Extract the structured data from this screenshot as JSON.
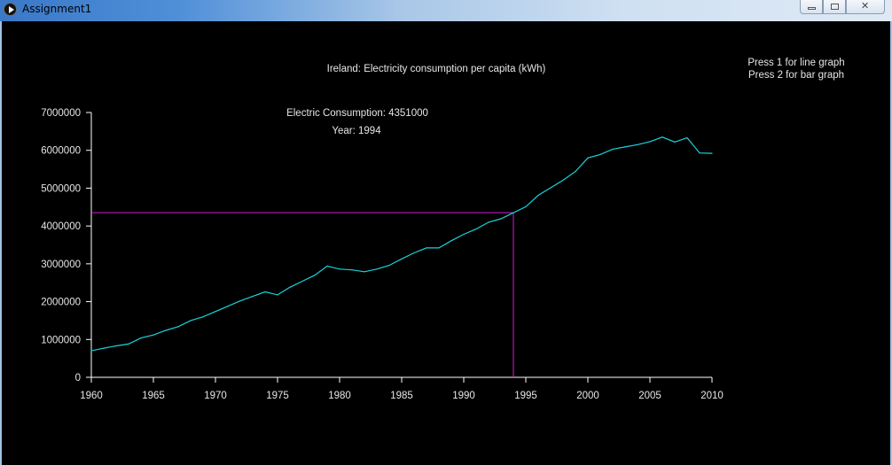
{
  "window": {
    "title": "Assignment1"
  },
  "instructions": [
    "Press 1 for line graph",
    "Press 2 for bar graph"
  ],
  "readout": {
    "consumption_label": "Electric Consumption: 4351000",
    "year_label": "Year: 1994"
  },
  "colors": {
    "line": "#19d3dd",
    "cursor": "#d21ed2",
    "axis": "#ffffff",
    "text": "#e6e6e6",
    "background": "#000000"
  },
  "chart_data": {
    "type": "line",
    "title": "Ireland: Electricity consumption per capita (kWh)",
    "xlabel": "",
    "ylabel": "",
    "xlim": [
      1960,
      2010
    ],
    "ylim": [
      0,
      7000000
    ],
    "x_ticks": [
      "1960",
      "1965",
      "1970",
      "1975",
      "1980",
      "1985",
      "1990",
      "1995",
      "2000",
      "2005",
      "2010"
    ],
    "y_ticks": [
      "0",
      "1000000",
      "2000000",
      "3000000",
      "4000000",
      "5000000",
      "6000000",
      "7000000"
    ],
    "series": [
      {
        "x": [
          1960,
          1961,
          1962,
          1963,
          1964,
          1965,
          1966,
          1967,
          1968,
          1969,
          1970,
          1971,
          1972,
          1973,
          1974,
          1975,
          1976,
          1977,
          1978,
          1979,
          1980,
          1981,
          1982,
          1983,
          1984,
          1985,
          1986,
          1987,
          1988,
          1989,
          1990,
          1991,
          1992,
          1993,
          1994,
          1995,
          1996,
          1997,
          1998,
          1999,
          2000,
          2001,
          2002,
          2003,
          2004,
          2005,
          2006,
          2007,
          2008,
          2009,
          2010
        ],
        "values": [
          700000,
          770000,
          830000,
          880000,
          1040000,
          1120000,
          1240000,
          1340000,
          1500000,
          1600000,
          1740000,
          1880000,
          2020000,
          2140000,
          2260000,
          2180000,
          2380000,
          2540000,
          2700000,
          2940000,
          2860000,
          2840000,
          2790000,
          2860000,
          2960000,
          3130000,
          3290000,
          3420000,
          3420000,
          3610000,
          3780000,
          3920000,
          4100000,
          4190000,
          4351000,
          4510000,
          4810000,
          5010000,
          5210000,
          5440000,
          5800000,
          5890000,
          6030000,
          6090000,
          6150000,
          6230000,
          6350000,
          6220000,
          6330000,
          5930000,
          5920000
        ]
      }
    ],
    "selected_point": {
      "x": 1994,
      "y": 4351000
    },
    "grid": false,
    "legend": "none"
  }
}
